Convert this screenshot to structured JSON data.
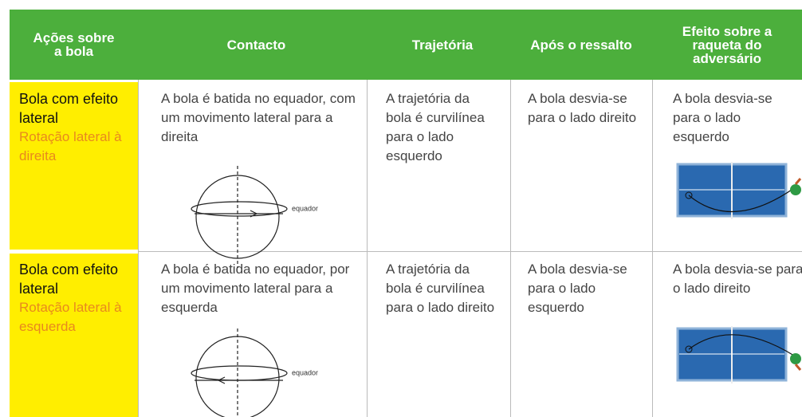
{
  "header": {
    "columns": [
      "Ações sobre a bola",
      "Contacto",
      "Trajetória",
      "Após o ressalto",
      "Efeito sobre a raqueta do adversário"
    ]
  },
  "rows": [
    {
      "action": "Bola com efeito lateral",
      "rotation": "Rotação lateral à direita",
      "contact": "A bola é batida no equador, com um movimento lateral para a direita",
      "diagram_label": "equador",
      "trajectory": "A trajetória da bola é curvilínea para o lado esquerdo",
      "bounce": "A bola desvia-se para o lado direito",
      "effect": "A bola desvia-se para o lado esquerdo"
    },
    {
      "action": "Bola com efeito lateral",
      "rotation": "Rotação lateral à esquerda",
      "contact": "A bola é batida no equador, por um movimento lateral para a esquerda",
      "diagram_label": "equador",
      "trajectory": "A trajetória da bola é curvilínea para o lado direito",
      "bounce": "A bola desvia-se para o lado esquerdo",
      "effect": "A bola desvia-se para o lado direito"
    }
  ]
}
